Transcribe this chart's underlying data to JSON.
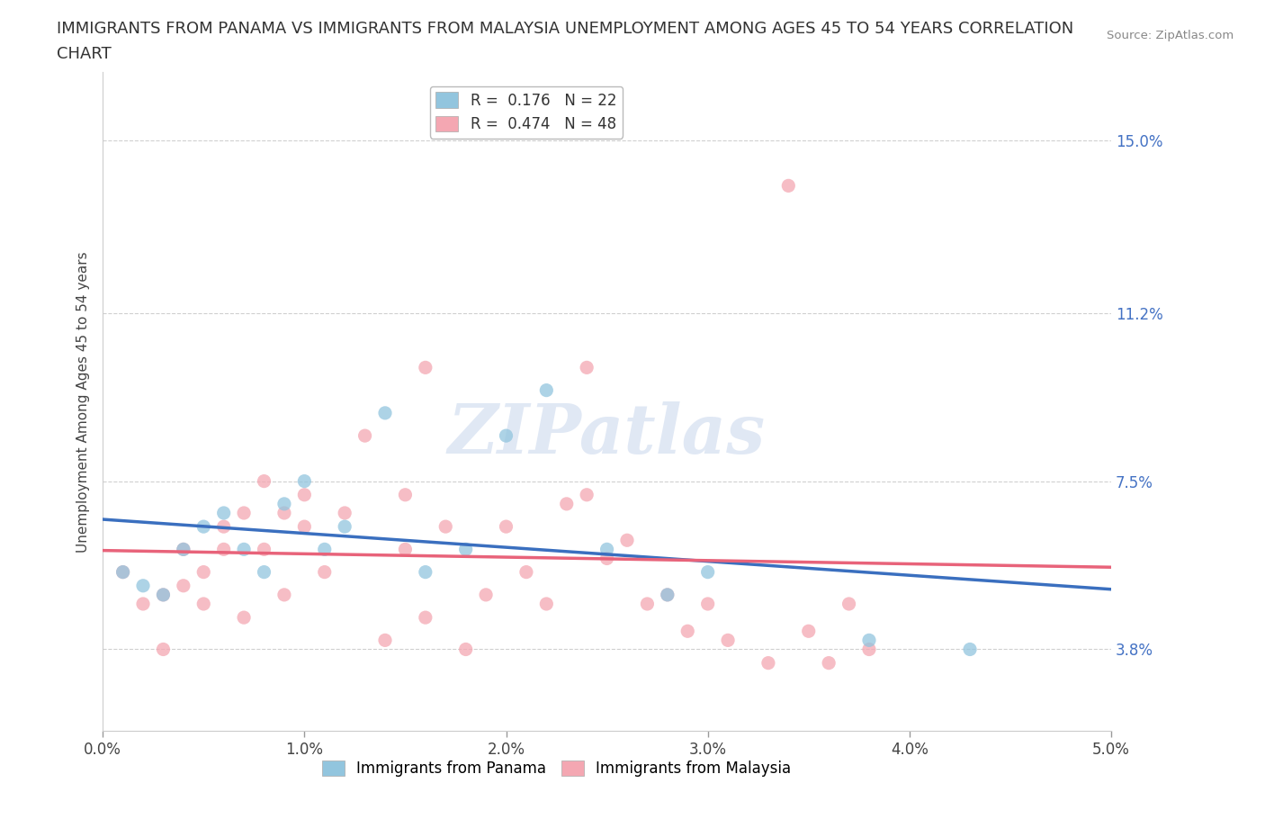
{
  "title_line1": "IMMIGRANTS FROM PANAMA VS IMMIGRANTS FROM MALAYSIA UNEMPLOYMENT AMONG AGES 45 TO 54 YEARS CORRELATION",
  "title_line2": "CHART",
  "source": "Source: ZipAtlas.com",
  "ylabel": "Unemployment Among Ages 45 to 54 years",
  "xlim": [
    0.0,
    0.05
  ],
  "ylim": [
    0.02,
    0.165
  ],
  "yticks": [
    0.038,
    0.075,
    0.112,
    0.15
  ],
  "ytick_labels": [
    "3.8%",
    "7.5%",
    "11.2%",
    "15.0%"
  ],
  "xticks": [
    0.0,
    0.01,
    0.02,
    0.03,
    0.04,
    0.05
  ],
  "xtick_labels": [
    "0.0%",
    "1.0%",
    "2.0%",
    "3.0%",
    "4.0%",
    "5.0%"
  ],
  "panama_color": "#92C5DE",
  "malaysia_color": "#F4A7B2",
  "panama_line_color": "#3A6FBF",
  "malaysia_line_color": "#E8637A",
  "r_panama": 0.176,
  "n_panama": 22,
  "r_malaysia": 0.474,
  "n_malaysia": 48,
  "panama_x": [
    0.001,
    0.002,
    0.003,
    0.004,
    0.005,
    0.006,
    0.007,
    0.008,
    0.009,
    0.01,
    0.011,
    0.012,
    0.014,
    0.016,
    0.018,
    0.02,
    0.022,
    0.025,
    0.028,
    0.03,
    0.038,
    0.043
  ],
  "panama_y": [
    0.055,
    0.052,
    0.05,
    0.06,
    0.065,
    0.068,
    0.06,
    0.055,
    0.07,
    0.075,
    0.06,
    0.065,
    0.09,
    0.055,
    0.06,
    0.085,
    0.095,
    0.06,
    0.05,
    0.055,
    0.04,
    0.038
  ],
  "malaysia_x": [
    0.001,
    0.002,
    0.003,
    0.003,
    0.004,
    0.004,
    0.005,
    0.005,
    0.006,
    0.006,
    0.007,
    0.007,
    0.008,
    0.008,
    0.009,
    0.009,
    0.01,
    0.01,
    0.011,
    0.012,
    0.013,
    0.014,
    0.015,
    0.015,
    0.016,
    0.016,
    0.017,
    0.018,
    0.019,
    0.02,
    0.021,
    0.022,
    0.023,
    0.024,
    0.024,
    0.025,
    0.026,
    0.027,
    0.028,
    0.029,
    0.03,
    0.031,
    0.033,
    0.034,
    0.035,
    0.036,
    0.037,
    0.038
  ],
  "malaysia_y": [
    0.055,
    0.048,
    0.05,
    0.038,
    0.052,
    0.06,
    0.048,
    0.055,
    0.06,
    0.065,
    0.068,
    0.045,
    0.075,
    0.06,
    0.05,
    0.068,
    0.065,
    0.072,
    0.055,
    0.068,
    0.085,
    0.04,
    0.072,
    0.06,
    0.045,
    0.1,
    0.065,
    0.038,
    0.05,
    0.065,
    0.055,
    0.048,
    0.07,
    0.1,
    0.072,
    0.058,
    0.062,
    0.048,
    0.05,
    0.042,
    0.048,
    0.04,
    0.035,
    0.14,
    0.042,
    0.035,
    0.048,
    0.038
  ],
  "watermark": "ZIPatlas",
  "background_color": "#ffffff",
  "grid_color": "#d0d0d0",
  "title_fontsize": 13,
  "axis_label_fontsize": 11,
  "tick_fontsize": 12,
  "legend_fontsize": 12
}
